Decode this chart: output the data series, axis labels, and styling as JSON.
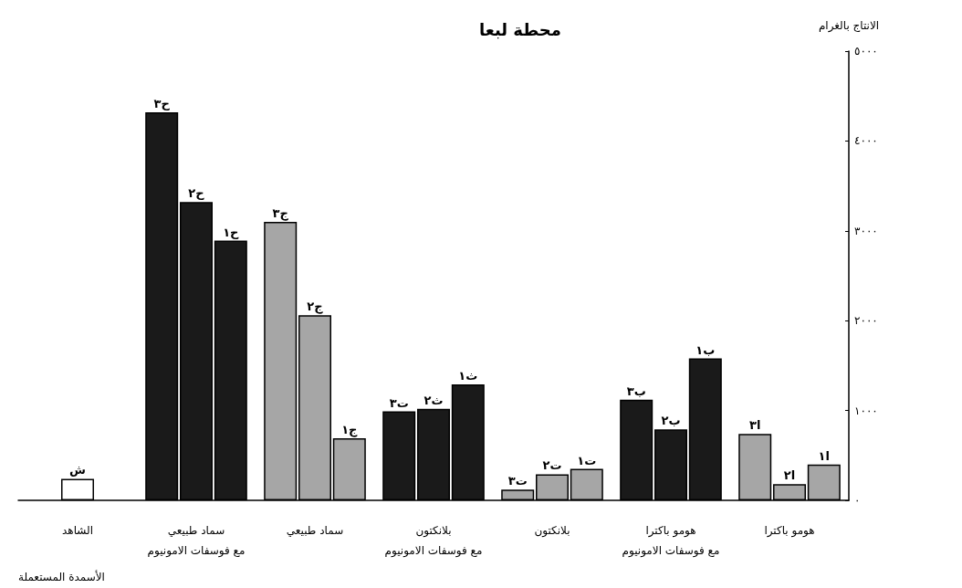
{
  "chart_data": {
    "type": "bar",
    "title": "محطة لبعا",
    "ylabel": "الانتاج بالغرام",
    "xlabel": "الأسمدة المستعملة",
    "categories": [
      "الشاهد",
      "سماد طبيعي\nمع فوسفات الامونيوم",
      "سماد طبيعي",
      "بلانكتون\nمع فوسفات الامونيوم",
      "بلانكتون",
      "هومو باكترا\nمع فوسفات الامونيوم",
      "هومو باكترا"
    ],
    "series": [
      {
        "values": [
          null,
          4320,
          3100,
          990,
          120,
          1120,
          740
        ],
        "colors": [
          null,
          "#1a1a1a",
          "#a6a6a6",
          "#1a1a1a",
          "#a6a6a6",
          "#1a1a1a",
          "#a6a6a6"
        ]
      },
      {
        "values": [
          240,
          3320,
          2060,
          1020,
          290,
          790,
          180
        ],
        "colors": [
          "#ffffff",
          "#1a1a1a",
          "#a6a6a6",
          "#1a1a1a",
          "#a6a6a6",
          "#1a1a1a",
          "#a6a6a6"
        ]
      },
      {
        "values": [
          null,
          2890,
          690,
          1290,
          350,
          1580,
          400
        ],
        "colors": [
          null,
          "#1a1a1a",
          "#a6a6a6",
          "#1a1a1a",
          "#a6a6a6",
          "#1a1a1a",
          "#a6a6a6"
        ]
      }
    ],
    "ylim": [
      0,
      5000
    ],
    "yticks": [
      {
        "value": 0,
        "label": "٠"
      },
      {
        "value": 1000,
        "label": "١٠٠٠"
      },
      {
        "value": 2000,
        "label": "٢٠٠٠"
      },
      {
        "value": 3000,
        "label": "٣٠٠٠"
      },
      {
        "value": 4000,
        "label": "٤٠٠٠"
      },
      {
        "value": 5000,
        "label": "٥٠٠٠"
      }
    ],
    "grid": false,
    "annotations": [
      "ش",
      "ح٣",
      "ح٢",
      "ح١",
      "ج٣",
      "ج٢",
      "ج١",
      "ت٣",
      "ث٢",
      "ث١",
      "ت٣",
      "ت٢",
      "ت١",
      "ب٣",
      "ب٢",
      "ب١",
      "ا٣",
      "ا٢",
      "ا١"
    ]
  }
}
